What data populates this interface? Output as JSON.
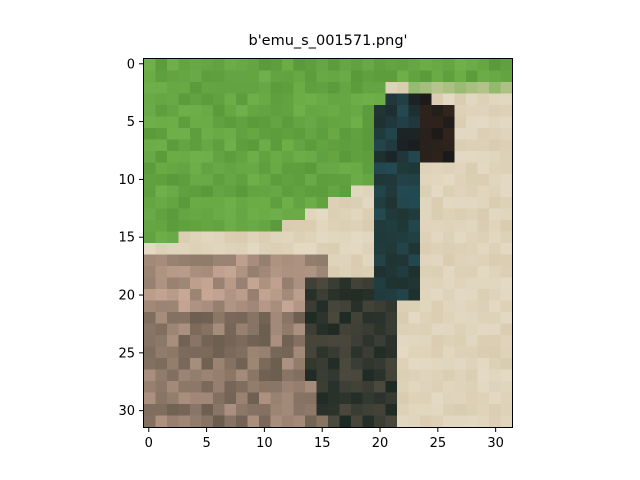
{
  "title": "b'emu_s_001571.png'",
  "image": {
    "description_free": true,
    "x_ticks": [
      "0",
      "5",
      "10",
      "15",
      "20",
      "25",
      "30"
    ],
    "y_ticks": [
      "0",
      "5",
      "10",
      "15",
      "20",
      "25",
      "30"
    ],
    "x_tick_values": [
      0,
      5,
      10,
      15,
      20,
      25,
      30
    ],
    "y_tick_values": [
      0,
      5,
      10,
      15,
      20,
      25,
      30
    ],
    "xlim": [
      -0.5,
      31.5
    ],
    "ylim": [
      31.5,
      -0.5
    ],
    "colors": {
      "grass": "#6fb04a",
      "grass_dark": "#5a9a3a",
      "sand": "#d9ccb0",
      "sand_light": "#e4dac4",
      "emu_body": "#6b5d4e",
      "emu_dark": "#1e2a24",
      "emu_neck": "#234a52",
      "emu_head": "#1a1a1a",
      "pink_tan": "#c9a896"
    }
  }
}
